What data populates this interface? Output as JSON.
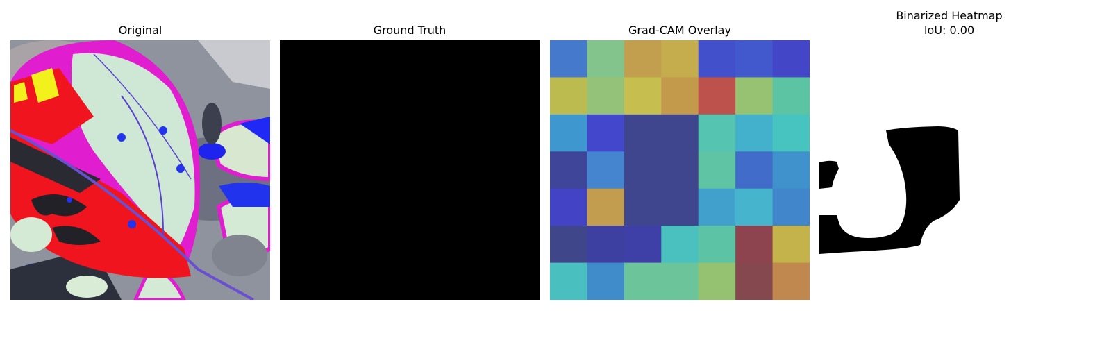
{
  "panels": [
    {
      "title": "Original"
    },
    {
      "title": "Ground Truth"
    },
    {
      "title": "Grad-CAM Overlay"
    },
    {
      "title": "Binarized Heatmap",
      "subtitle": "IoU: 0.00"
    }
  ],
  "gradcam": {
    "rows": 7,
    "cols": 7,
    "cell_colors": [
      [
        "#4479cc",
        "#82c48c",
        "#c29f4f",
        "#c5ac4d",
        "#4350cb",
        "#4259ce",
        "#4346c6"
      ],
      [
        "#bcbb4f",
        "#93c278",
        "#c6bf4f",
        "#c3994c",
        "#bd524d",
        "#96c271",
        "#5cc3a3"
      ],
      [
        "#3e97cf",
        "#4347cb",
        "#3f468d",
        "#3f468d",
        "#55c5b1",
        "#44b1cc",
        "#48c4c0"
      ],
      [
        "#3f4699",
        "#4585cf",
        "#3f468d",
        "#3f468d",
        "#5fc4a3",
        "#416cc9",
        "#3f92cc"
      ],
      [
        "#4343c6",
        "#c29c4f",
        "#3f468d",
        "#3f468d",
        "#42a0cc",
        "#46b4cc",
        "#4186ca"
      ],
      [
        "#3f4689",
        "#3e40a1",
        "#3e3fa7",
        "#4bc1bf",
        "#5dc3a5",
        "#8d444e",
        "#c3b34a"
      ],
      [
        "#49c0bf",
        "#408ccb",
        "#6cc49b",
        "#6cc49b",
        "#95c271",
        "#85484f",
        "#c0884e"
      ]
    ]
  },
  "colors": {
    "ground_truth": "#000000",
    "mask_fg": "#000000",
    "mask_bg": "#ffffff"
  }
}
